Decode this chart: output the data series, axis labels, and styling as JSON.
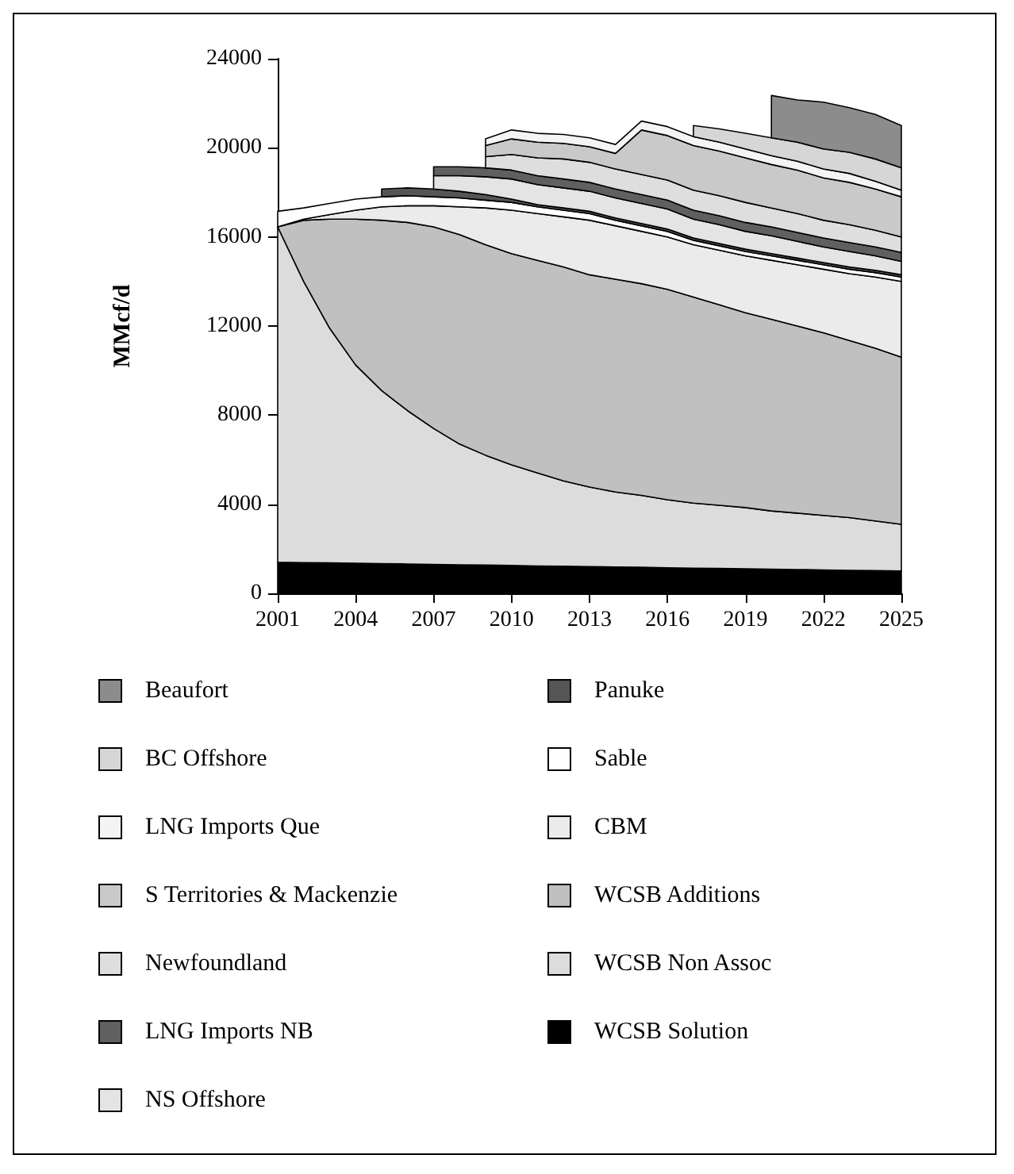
{
  "chart_data": {
    "type": "area",
    "stacked": true,
    "ylabel": "MMcf/d",
    "legend": "bottom",
    "grid": false,
    "x": [
      2001,
      2002,
      2003,
      2004,
      2005,
      2006,
      2007,
      2008,
      2009,
      2010,
      2011,
      2012,
      2013,
      2014,
      2015,
      2016,
      2017,
      2018,
      2019,
      2020,
      2021,
      2022,
      2023,
      2024,
      2025
    ],
    "xlim": [
      2001,
      2025
    ],
    "xticks": [
      2001,
      2004,
      2007,
      2010,
      2013,
      2016,
      2019,
      2022,
      2025
    ],
    "ylim": [
      0,
      24000
    ],
    "yticks": [
      0,
      4000,
      8000,
      12000,
      16000,
      20000,
      24000
    ],
    "series": [
      {
        "name": "WCSB Solution",
        "color": "#000000",
        "values": [
          1400,
          1380,
          1370,
          1350,
          1330,
          1320,
          1300,
          1280,
          1270,
          1250,
          1230,
          1220,
          1200,
          1180,
          1170,
          1150,
          1130,
          1120,
          1100,
          1080,
          1070,
          1050,
          1030,
          1020,
          1000
        ]
      },
      {
        "name": "WCSB Non Assoc",
        "color": "#dcdcdc",
        "values": [
          15050,
          12620,
          10530,
          8900,
          7770,
          6880,
          6100,
          5420,
          4930,
          4520,
          4170,
          3830,
          3570,
          3370,
          3230,
          3050,
          2920,
          2830,
          2750,
          2620,
          2530,
          2450,
          2370,
          2230,
          2100
        ]
      },
      {
        "name": "WCSB Additions",
        "color": "#c0c0c0",
        "values": [
          0,
          2750,
          4900,
          6550,
          7650,
          8450,
          9050,
          9400,
          9450,
          9480,
          9550,
          9600,
          9530,
          9550,
          9500,
          9450,
          9250,
          9000,
          8750,
          8600,
          8400,
          8200,
          7950,
          7750,
          7500
        ]
      },
      {
        "name": "CBM",
        "color": "#ebebeb",
        "values": [
          0,
          50,
          200,
          400,
          600,
          750,
          950,
          1250,
          1650,
          1950,
          2100,
          2250,
          2450,
          2400,
          2350,
          2350,
          2350,
          2450,
          2550,
          2650,
          2750,
          2850,
          3000,
          3200,
          3400
        ]
      },
      {
        "name": "Sable",
        "color": "#ffffff",
        "values": [
          700,
          500,
          500,
          500,
          450,
          450,
          400,
          400,
          350,
          350,
          300,
          300,
          300,
          250,
          250,
          250,
          200,
          200,
          200,
          200,
          200,
          200,
          200,
          200,
          200
        ]
      },
      {
        "name": "Panuke",
        "color": "#555555",
        "values": [
          null,
          null,
          null,
          null,
          350,
          350,
          350,
          300,
          250,
          150,
          100,
          100,
          100,
          100,
          100,
          100,
          100,
          100,
          100,
          100,
          100,
          100,
          100,
          100,
          100
        ]
      },
      {
        "name": "NS Offshore",
        "color": "#e4e4e4",
        "values": [
          null,
          null,
          null,
          null,
          null,
          null,
          600,
          700,
          800,
          900,
          900,
          900,
          900,
          900,
          900,
          900,
          850,
          850,
          800,
          800,
          750,
          700,
          700,
          650,
          600
        ]
      },
      {
        "name": "LNG Imports NB",
        "color": "#606060",
        "values": [
          null,
          null,
          null,
          null,
          null,
          null,
          400,
          400,
          400,
          400,
          400,
          400,
          400,
          400,
          400,
          400,
          400,
          400,
          400,
          400,
          400,
          400,
          400,
          400,
          400
        ]
      },
      {
        "name": "Newfoundland",
        "color": "#dedede",
        "values": [
          null,
          null,
          null,
          null,
          null,
          null,
          null,
          null,
          500,
          700,
          800,
          900,
          900,
          900,
          900,
          900,
          900,
          900,
          900,
          850,
          850,
          800,
          800,
          750,
          700
        ]
      },
      {
        "name": "S Territories & Mackenzie",
        "color": "#c9c9c9",
        "values": [
          null,
          null,
          null,
          null,
          null,
          null,
          null,
          null,
          500,
          700,
          700,
          700,
          700,
          700,
          2000,
          2000,
          2000,
          2000,
          2000,
          1950,
          1950,
          1900,
          1900,
          1850,
          1800
        ]
      },
      {
        "name": "LNG Imports Que",
        "color": "#f4f4f4",
        "values": [
          null,
          null,
          null,
          null,
          null,
          null,
          null,
          null,
          300,
          400,
          400,
          400,
          400,
          400,
          400,
          400,
          400,
          400,
          400,
          400,
          400,
          400,
          400,
          350,
          300
        ]
      },
      {
        "name": "BC Offshore",
        "color": "#d6d6d6",
        "values": [
          null,
          null,
          null,
          null,
          null,
          null,
          null,
          null,
          null,
          null,
          null,
          null,
          null,
          null,
          null,
          null,
          500,
          600,
          700,
          800,
          850,
          900,
          950,
          1000,
          1000
        ]
      },
      {
        "name": "Beaufort",
        "color": "#8c8c8c",
        "values": [
          null,
          null,
          null,
          null,
          null,
          null,
          null,
          null,
          null,
          null,
          null,
          null,
          null,
          null,
          null,
          null,
          null,
          null,
          null,
          1900,
          1900,
          2100,
          2000,
          2000,
          1900
        ]
      }
    ]
  }
}
